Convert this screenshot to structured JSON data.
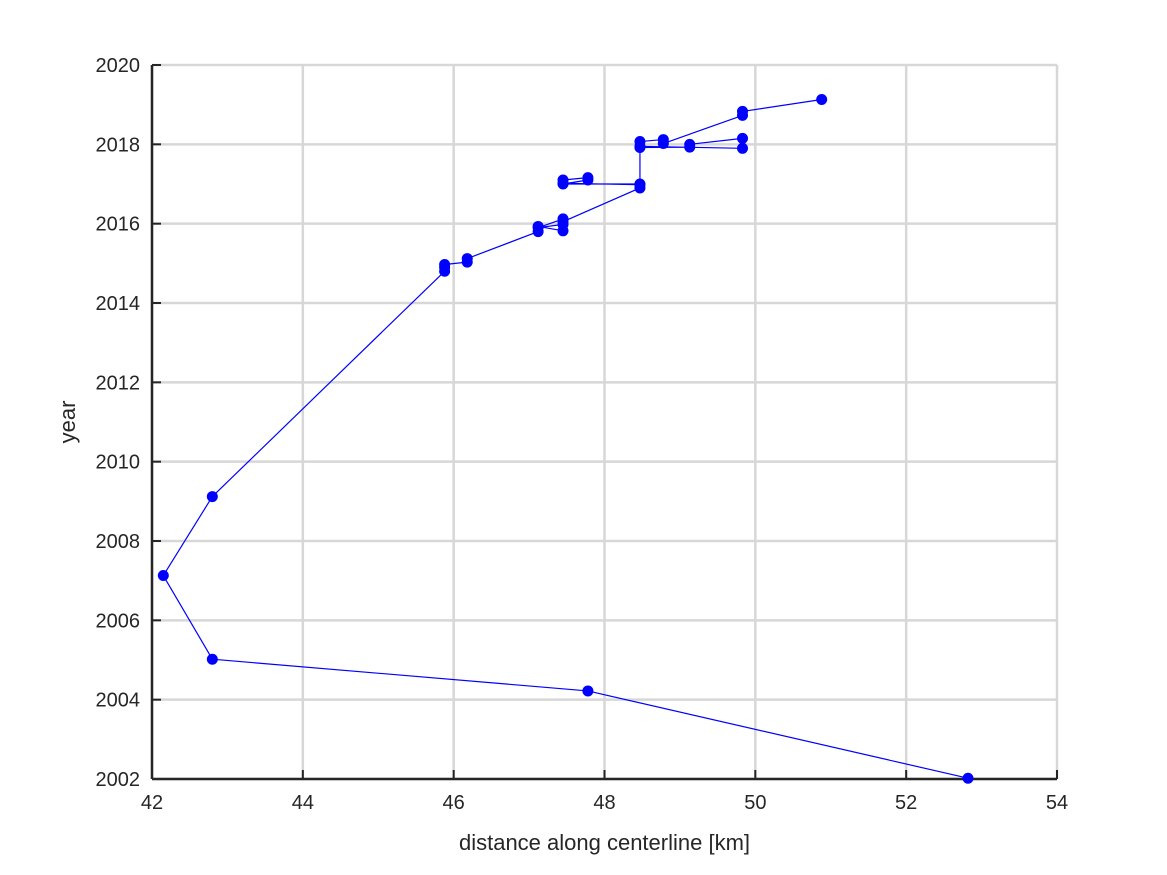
{
  "chart_data": {
    "type": "line",
    "title": "",
    "xlabel": "distance along centerline [km]",
    "ylabel": "year",
    "xlim": [
      42,
      54
    ],
    "ylim": [
      2002,
      2020
    ],
    "xticks": [
      42,
      44,
      46,
      48,
      50,
      52,
      54
    ],
    "yticks": [
      2002,
      2004,
      2006,
      2008,
      2010,
      2012,
      2014,
      2016,
      2018,
      2020
    ],
    "grid": true,
    "box": "open top and right",
    "series": [
      {
        "color": "#0000ff",
        "marker": "filled-circle",
        "x": [
          52.82,
          47.78,
          42.8,
          42.15,
          42.8,
          45.88,
          45.88,
          45.88,
          46.18,
          46.18,
          47.12,
          47.12,
          47.45,
          47.45,
          47.12,
          47.45,
          47.45,
          48.47,
          48.47,
          47.45,
          47.45,
          47.78,
          47.78,
          47.45,
          48.47,
          48.47,
          49.83,
          49.83,
          49.13,
          49.13,
          48.47,
          48.47,
          48.78,
          48.78,
          49.83,
          49.83,
          50.88
        ],
        "y": [
          2002.02,
          2004.22,
          2005.02,
          2007.13,
          2009.12,
          2014.8,
          2014.9,
          2014.97,
          2015.03,
          2015.12,
          2015.8,
          2015.93,
          2015.82,
          2016.12,
          2015.9,
          2015.98,
          2016.05,
          2016.9,
          2016.98,
          2017.02,
          2017.1,
          2017.16,
          2017.1,
          2017.0,
          2017.0,
          2017.95,
          2017.9,
          2018.15,
          2018.0,
          2017.93,
          2017.92,
          2018.07,
          2018.12,
          2018.02,
          2018.73,
          2018.83,
          2019.13
        ]
      }
    ]
  }
}
